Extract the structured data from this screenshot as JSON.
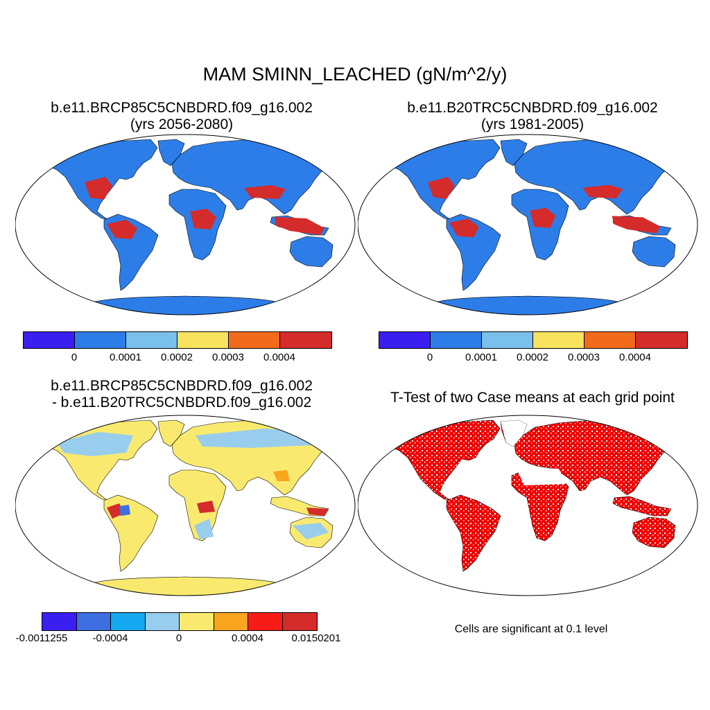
{
  "main_title": "MAM SMINN_LEACHED (gN/m^2/y)",
  "panels": [
    {
      "title_line1": "b.e11.BRCP85C5CNBDRD.f09_g16.002",
      "title_line2": "(yrs 2056-2080)"
    },
    {
      "title_line1": "b.e11.B20TRC5CNBDRD.f09_g16.002",
      "title_line2": "(yrs 1981-2005)"
    },
    {
      "title_line1": "b.e11.BRCP85C5CNBDRD.f09_g16.002",
      "title_line2": "- b.e11.B20TRC5CNBDRD.f09_g16.002"
    },
    {
      "title_line1": "T-Test of two Case means at each grid point"
    }
  ],
  "colorbars": {
    "absolute": {
      "colors": [
        "#3b1ff0",
        "#2d7de8",
        "#79c0ec",
        "#f8e35e",
        "#f26a1b",
        "#d42b2b"
      ],
      "tick_labels": [
        "0",
        "0.0001",
        "0.0002",
        "0.0003",
        "0.0004"
      ]
    },
    "difference": {
      "colors": [
        "#3b1ff0",
        "#3d6fe0",
        "#14a8f0",
        "#99cded",
        "#f9ea6f",
        "#f9a51e",
        "#f81c18",
        "#d42b2b"
      ],
      "tick_labels": [
        "-0.0011255",
        "-0.0004",
        "0",
        "0.0004",
        "0.0150201"
      ]
    }
  },
  "map_colors": {
    "land_base_absolute": "#2d7de8",
    "land_base_difference": "#f9ea6f",
    "significant": "#f00000"
  },
  "significance_note": "Cells are significant at 0.1 level"
}
